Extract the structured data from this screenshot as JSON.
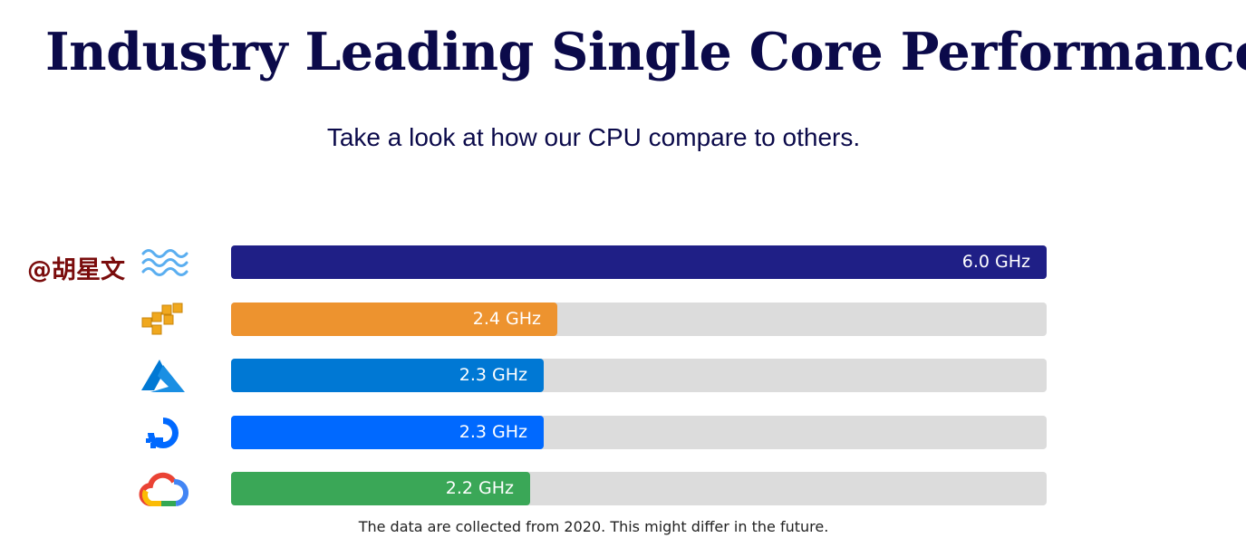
{
  "header": {
    "title": "Industry Leading Single Core Performance",
    "subtitle": "Take a look at how our CPU compare to others."
  },
  "watermark": "@胡星文",
  "footnote": "The data are collected from 2020. This might differ in the future.",
  "chart_data": {
    "type": "bar",
    "orientation": "horizontal",
    "title": "Industry Leading Single Core Performance",
    "subtitle": "Take a look at how our CPU compare to others.",
    "unit": "GHz",
    "xlim": [
      0,
      6.0
    ],
    "grid": false,
    "categories": [
      "wave-logo",
      "aws-logo",
      "azure-logo",
      "digitalocean-logo",
      "google-cloud-logo"
    ],
    "values": [
      6.0,
      2.4,
      2.3,
      2.3,
      2.2
    ],
    "labels": [
      "6.0 GHz",
      "2.4 GHz",
      "2.3 GHz",
      "2.3 GHz",
      "2.2 GHz"
    ],
    "colors": [
      "#1f1f86",
      "#ed932f",
      "#0078d4",
      "#0069ff",
      "#3aa757"
    ],
    "track_color": "#dcdcdc"
  }
}
